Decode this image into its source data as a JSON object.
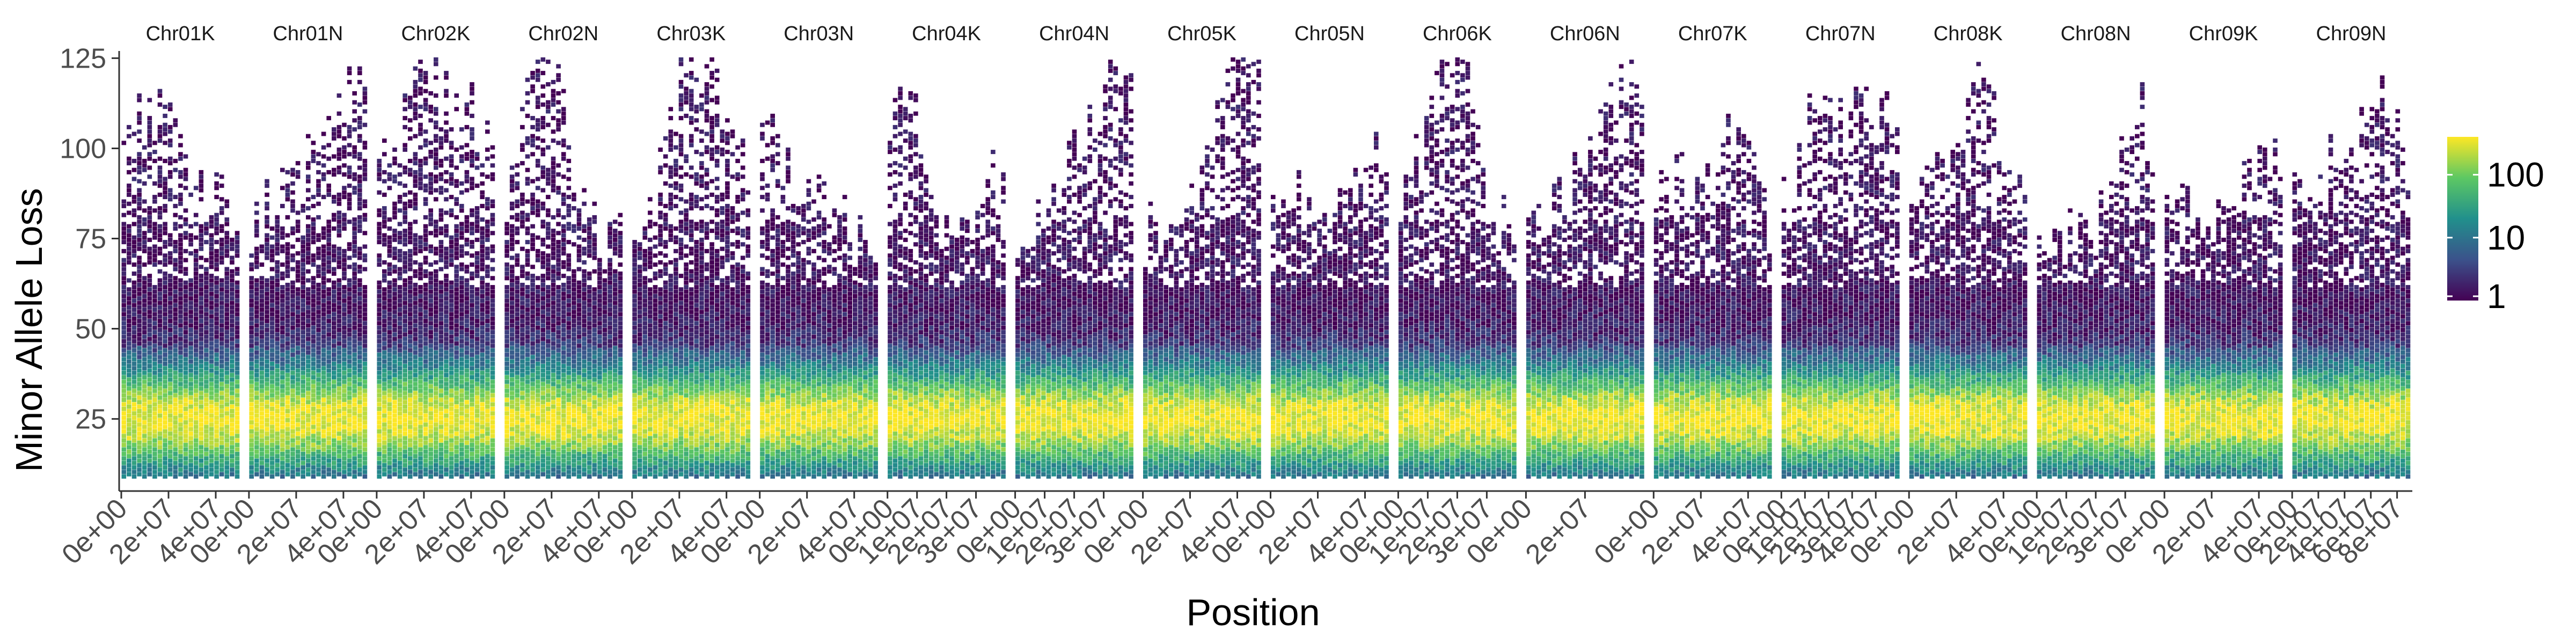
{
  "chart_data": {
    "type": "heatmap",
    "subtype": "hexbin-faceted",
    "xlabel": "Position",
    "ylabel": "Minor Allele Loss",
    "ylim": [
      5,
      127
    ],
    "y_ticks": [
      25,
      50,
      75,
      100,
      125
    ],
    "y_tick_labels": [
      "25",
      "50",
      "75",
      "100",
      "125"
    ],
    "grid": false,
    "legend": {
      "placement": "right",
      "scale": "log",
      "ticks": [
        1,
        10,
        100
      ],
      "tick_labels": [
        "1",
        "10",
        "100"
      ],
      "max_count": 400,
      "colors": [
        "#440154",
        "#3b528b",
        "#21908c",
        "#5dc863",
        "#fde725"
      ]
    },
    "facets": [
      {
        "label": "Chr01K",
        "x_max": 50000000,
        "x_ticks": [
          0,
          20000000,
          40000000
        ],
        "x_tick_labels": [
          "0e+00",
          "2e+07",
          "4e+07"
        ]
      },
      {
        "label": "Chr01N",
        "x_max": 50000000,
        "x_ticks": [
          0,
          20000000,
          40000000
        ],
        "x_tick_labels": [
          "0e+00",
          "2e+07",
          "4e+07"
        ]
      },
      {
        "label": "Chr02K",
        "x_max": 50000000,
        "x_ticks": [
          0,
          20000000,
          40000000
        ],
        "x_tick_labels": [
          "0e+00",
          "2e+07",
          "4e+07"
        ]
      },
      {
        "label": "Chr02N",
        "x_max": 50000000,
        "x_ticks": [
          0,
          20000000,
          40000000
        ],
        "x_tick_labels": [
          "0e+00",
          "2e+07",
          "4e+07"
        ]
      },
      {
        "label": "Chr03K",
        "x_max": 50000000,
        "x_ticks": [
          0,
          20000000,
          40000000
        ],
        "x_tick_labels": [
          "0e+00",
          "2e+07",
          "4e+07"
        ]
      },
      {
        "label": "Chr03N",
        "x_max": 50000000,
        "x_ticks": [
          0,
          20000000,
          40000000
        ],
        "x_tick_labels": [
          "0e+00",
          "2e+07",
          "4e+07"
        ]
      },
      {
        "label": "Chr04K",
        "x_max": 40000000,
        "x_ticks": [
          0,
          10000000,
          20000000,
          30000000
        ],
        "x_tick_labels": [
          "0e+00",
          "1e+07",
          "2e+07",
          "3e+07"
        ]
      },
      {
        "label": "Chr04N",
        "x_max": 40000000,
        "x_ticks": [
          0,
          10000000,
          20000000,
          30000000
        ],
        "x_tick_labels": [
          "0e+00",
          "1e+07",
          "2e+07",
          "3e+07"
        ]
      },
      {
        "label": "Chr05K",
        "x_max": 50000000,
        "x_ticks": [
          0,
          20000000,
          40000000
        ],
        "x_tick_labels": [
          "0e+00",
          "2e+07",
          "4e+07"
        ]
      },
      {
        "label": "Chr05N",
        "x_max": 50000000,
        "x_ticks": [
          0,
          20000000,
          40000000
        ],
        "x_tick_labels": [
          "0e+00",
          "2e+07",
          "4e+07"
        ]
      },
      {
        "label": "Chr06K",
        "x_max": 40000000,
        "x_ticks": [
          0,
          10000000,
          20000000,
          30000000
        ],
        "x_tick_labels": [
          "0e+00",
          "1e+07",
          "2e+07",
          "3e+07"
        ]
      },
      {
        "label": "Chr06N",
        "x_max": 40000000,
        "x_ticks": [
          0,
          20000000
        ],
        "x_tick_labels": [
          "0e+00",
          "2e+07"
        ]
      },
      {
        "label": "Chr07K",
        "x_max": 50000000,
        "x_ticks": [
          0,
          20000000,
          40000000
        ],
        "x_tick_labels": [
          "0e+00",
          "2e+07",
          "4e+07"
        ]
      },
      {
        "label": "Chr07N",
        "x_max": 50000000,
        "x_ticks": [
          0,
          10000000,
          20000000,
          30000000,
          40000000
        ],
        "x_tick_labels": [
          "0e+00",
          "1e+07",
          "2e+07",
          "3e+07",
          "4e+07"
        ]
      },
      {
        "label": "Chr08K",
        "x_max": 50000000,
        "x_ticks": [
          0,
          20000000,
          40000000
        ],
        "x_tick_labels": [
          "0e+00",
          "2e+07",
          "4e+07"
        ]
      },
      {
        "label": "Chr08N",
        "x_max": 40000000,
        "x_ticks": [
          0,
          10000000,
          20000000,
          30000000
        ],
        "x_tick_labels": [
          "0e+00",
          "1e+07",
          "2e+07",
          "3e+07"
        ]
      },
      {
        "label": "Chr09K",
        "x_max": 50000000,
        "x_ticks": [
          0,
          20000000,
          40000000
        ],
        "x_tick_labels": [
          "0e+00",
          "2e+07",
          "4e+07"
        ]
      },
      {
        "label": "Chr09N",
        "x_max": 90000000,
        "x_ticks": [
          0,
          20000000,
          40000000,
          60000000,
          80000000
        ],
        "x_tick_labels": [
          "0e+00",
          "2e+07",
          "4e+07",
          "6e+07",
          "8e+07"
        ]
      }
    ]
  }
}
